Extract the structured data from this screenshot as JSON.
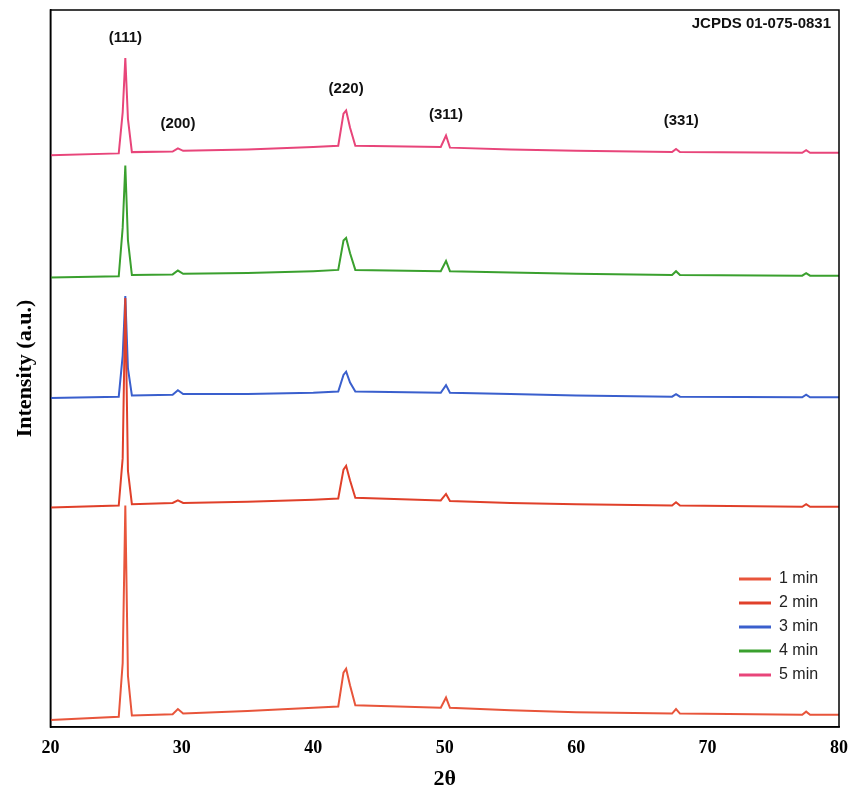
{
  "chart_data": {
    "type": "line",
    "reference": "JCPDS 01-075-0831",
    "x_label": "2θ",
    "y_label": "Intensity (a.u.)",
    "x": [
      20,
      25.2,
      25.5,
      25.7,
      25.9,
      26.2,
      29.3,
      29.7,
      30.1,
      35,
      40,
      41.9,
      42.3,
      42.5,
      42.8,
      43.2,
      49.7,
      50.1,
      50.4,
      55,
      60,
      67.3,
      67.6,
      67.9,
      77.2,
      77.5,
      77.8,
      80
    ],
    "series": [
      {
        "name": "1 min",
        "color": "#e8553b",
        "values": [
          1.1,
          1.6,
          10,
          34.6,
          8,
          1.8,
          2.0,
          2.8,
          2.1,
          2.5,
          3.0,
          3.2,
          8.5,
          9.1,
          6.5,
          3.4,
          3.0,
          4.6,
          3.0,
          2.6,
          2.3,
          2.1,
          2.8,
          2.1,
          1.9,
          2.4,
          1.9,
          1.9
        ]
      },
      {
        "name": "2 min",
        "color": "#e0402a",
        "values": [
          34.3,
          34.6,
          42,
          67.0,
          40,
          34.8,
          35.0,
          35.4,
          35.0,
          35.2,
          35.5,
          35.7,
          40.2,
          40.8,
          38.5,
          35.8,
          35.4,
          36.4,
          35.3,
          35.0,
          34.8,
          34.6,
          35.1,
          34.6,
          34.4,
          34.8,
          34.4,
          34.4
        ]
      },
      {
        "name": "3 min",
        "color": "#3a5fcd",
        "values": [
          51.4,
          51.6,
          58,
          67.3,
          56,
          51.8,
          51.9,
          52.6,
          52.0,
          52.0,
          52.2,
          52.4,
          55.0,
          55.5,
          53.8,
          52.4,
          52.2,
          53.4,
          52.2,
          52.0,
          51.8,
          51.6,
          52.0,
          51.6,
          51.5,
          51.9,
          51.5,
          51.5
        ]
      },
      {
        "name": "4 min",
        "color": "#3aa02e",
        "values": [
          70.2,
          70.4,
          78,
          87.7,
          76,
          70.6,
          70.7,
          71.3,
          70.8,
          70.9,
          71.2,
          71.4,
          76.0,
          76.4,
          74.0,
          71.4,
          71.2,
          72.8,
          71.2,
          71.0,
          70.8,
          70.6,
          71.2,
          70.6,
          70.5,
          70.9,
          70.5,
          70.5
        ]
      },
      {
        "name": "5 min",
        "color": "#e8457a",
        "values": [
          89.3,
          89.6,
          96,
          104.5,
          95,
          89.8,
          89.9,
          90.4,
          90.0,
          90.2,
          90.6,
          90.8,
          95.8,
          96.3,
          93.6,
          90.8,
          90.6,
          92.4,
          90.5,
          90.2,
          90.0,
          89.8,
          90.3,
          89.8,
          89.7,
          90.1,
          89.7,
          89.7
        ]
      }
    ],
    "annotations": [
      {
        "text": "(111)",
        "x": 25.7,
        "y": 106.5
      },
      {
        "text": "(200)",
        "x": 29.7,
        "y": 93
      },
      {
        "text": "(220)",
        "x": 42.5,
        "y": 98.5
      },
      {
        "text": "(311)",
        "x": 50.1,
        "y": 94.5
      },
      {
        "text": "(331)",
        "x": 68,
        "y": 93.5
      }
    ],
    "xlim": [
      20,
      80
    ],
    "xticks": [
      20,
      30,
      40,
      50,
      60,
      70,
      80
    ],
    "ylim": [
      0,
      112
    ],
    "tick_labels": "x",
    "grid": false,
    "legend": "lower right"
  }
}
